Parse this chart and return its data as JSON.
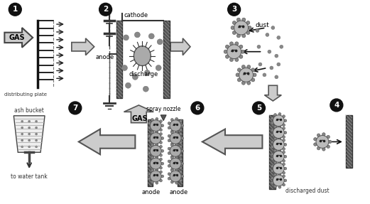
{
  "background_color": "#ffffff",
  "fig_width": 5.21,
  "fig_height": 2.87,
  "dpi": 100,
  "labels": {
    "gas1": "GAS",
    "dist_plate": "distributing plate",
    "cathode": "cathode",
    "anode": "anode",
    "discharge": "discharge",
    "gas2": "GAS",
    "dust": "dust",
    "discharged_dust": "discharged dust",
    "spray_nozzle": "spray nozzle",
    "anode_left": "anode",
    "anode_right": "anode",
    "ash_bucket": "ash bucket",
    "to_water_tank": "to water tank"
  }
}
